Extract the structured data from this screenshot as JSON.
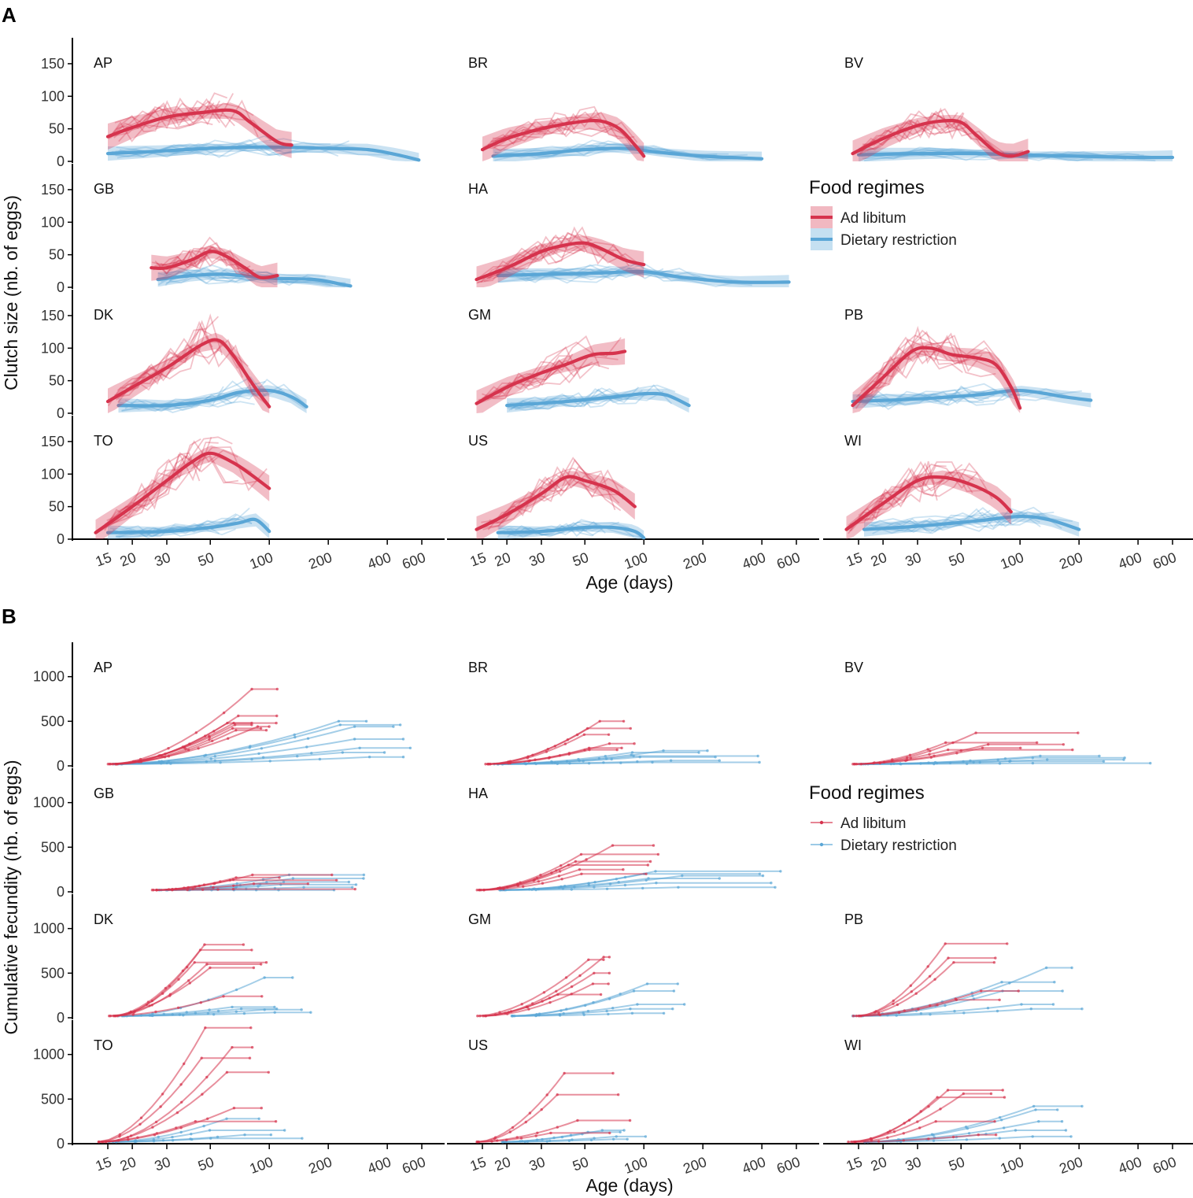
{
  "colors": {
    "ad_libitum": "#d6334d",
    "dietary_restriction": "#5aa6d6",
    "axis": "#000000"
  },
  "facets": [
    "AP",
    "BR",
    "BV",
    "GB",
    "HA",
    "DK",
    "GM",
    "PB",
    "TO",
    "US",
    "WI"
  ],
  "panel_a": {
    "letter": "A",
    "xlabel": "Age (days)",
    "ylabel": "Clutch size (nb. of eggs)",
    "legend": {
      "title": "Food regimes",
      "items": [
        "Ad libitum",
        "Dietary restriction"
      ]
    }
  },
  "panel_b": {
    "letter": "B",
    "xlabel": "Age (days)",
    "ylabel": "Cumulative fecundity (nb. of eggs)",
    "legend": {
      "title": "Food regimes",
      "items": [
        "Ad libitum",
        "Dietary restriction"
      ]
    }
  },
  "chart_data": [
    {
      "type": "line",
      "title": "A",
      "xlabel": "Age (days)",
      "ylabel": "Clutch size (nb. of eggs)",
      "x_scale": "log",
      "x_ticks": [
        15,
        20,
        30,
        50,
        100,
        200,
        400,
        600
      ],
      "y_ticks": [
        0,
        50,
        100,
        150
      ],
      "ylim": [
        0,
        185
      ],
      "legend": {
        "title": "Food regimes",
        "entries": [
          "Ad libitum",
          "Dietary restriction"
        ]
      },
      "facets": {
        "AP": {
          "ad": [
            [
              15,
              38
            ],
            [
              20,
              52
            ],
            [
              30,
              68
            ],
            [
              45,
              75
            ],
            [
              65,
              78
            ],
            [
              80,
              60
            ],
            [
              110,
              30
            ],
            [
              130,
              25
            ]
          ],
          "dr": [
            [
              15,
              12
            ],
            [
              25,
              15
            ],
            [
              50,
              20
            ],
            [
              100,
              22
            ],
            [
              200,
              20
            ],
            [
              320,
              18
            ],
            [
              450,
              10
            ],
            [
              580,
              2
            ]
          ],
          "ad_end": 130,
          "dr_end": 580
        },
        "BR": {
          "ad": [
            [
              15,
              18
            ],
            [
              20,
              35
            ],
            [
              30,
              50
            ],
            [
              45,
              60
            ],
            [
              60,
              62
            ],
            [
              75,
              50
            ],
            [
              90,
              25
            ],
            [
              100,
              8
            ]
          ],
          "dr": [
            [
              17,
              8
            ],
            [
              30,
              12
            ],
            [
              50,
              18
            ],
            [
              80,
              20
            ],
            [
              120,
              14
            ],
            [
              200,
              8
            ],
            [
              400,
              4
            ]
          ],
          "ad_end": 100,
          "dr_end": 400
        },
        "BV": {
          "ad": [
            [
              14,
              12
            ],
            [
              20,
              35
            ],
            [
              30,
              55
            ],
            [
              40,
              62
            ],
            [
              50,
              60
            ],
            [
              60,
              40
            ],
            [
              75,
              15
            ],
            [
              90,
              8
            ],
            [
              110,
              15
            ]
          ],
          "dr": [
            [
              15,
              10
            ],
            [
              30,
              12
            ],
            [
              60,
              12
            ],
            [
              100,
              10
            ],
            [
              200,
              8
            ],
            [
              400,
              6
            ],
            [
              600,
              6
            ]
          ],
          "ad_end": 110,
          "dr_end": 600
        },
        "GB": {
          "ad": [
            [
              25,
              30
            ],
            [
              30,
              30
            ],
            [
              40,
              42
            ],
            [
              50,
              55
            ],
            [
              60,
              48
            ],
            [
              75,
              30
            ],
            [
              90,
              15
            ],
            [
              110,
              18
            ]
          ],
          "dr": [
            [
              27,
              12
            ],
            [
              40,
              18
            ],
            [
              60,
              20
            ],
            [
              100,
              14
            ],
            [
              170,
              12
            ],
            [
              230,
              5
            ],
            [
              260,
              2
            ]
          ],
          "ad_end": 110,
          "dr_end": 260
        },
        "HA": {
          "ad": [
            [
              14,
              12
            ],
            [
              20,
              30
            ],
            [
              30,
              55
            ],
            [
              40,
              65
            ],
            [
              50,
              68
            ],
            [
              60,
              60
            ],
            [
              80,
              42
            ],
            [
              100,
              35
            ]
          ],
          "dr": [
            [
              18,
              18
            ],
            [
              30,
              20
            ],
            [
              60,
              22
            ],
            [
              100,
              24
            ],
            [
              160,
              15
            ],
            [
              300,
              8
            ],
            [
              550,
              8
            ]
          ],
          "ad_end": 100,
          "dr_end": 550
        },
        "DK": {
          "ad": [
            [
              15,
              18
            ],
            [
              20,
              40
            ],
            [
              30,
              70
            ],
            [
              45,
              105
            ],
            [
              55,
              112
            ],
            [
              65,
              90
            ],
            [
              80,
              50
            ],
            [
              90,
              28
            ],
            [
              100,
              10
            ]
          ],
          "dr": [
            [
              17,
              12
            ],
            [
              30,
              12
            ],
            [
              50,
              20
            ],
            [
              70,
              32
            ],
            [
              100,
              35
            ],
            [
              130,
              25
            ],
            [
              155,
              10
            ]
          ],
          "ad_end": 100,
          "dr_end": 155
        },
        "GM": {
          "ad": [
            [
              14,
              15
            ],
            [
              20,
              40
            ],
            [
              30,
              62
            ],
            [
              40,
              75
            ],
            [
              55,
              90
            ],
            [
              70,
              92
            ],
            [
              80,
              95
            ]
          ],
          "dr": [
            [
              20,
              12
            ],
            [
              40,
              18
            ],
            [
              70,
              25
            ],
            [
              100,
              30
            ],
            [
              130,
              28
            ],
            [
              170,
              12
            ]
          ],
          "ad_end": 80,
          "dr_end": 170
        },
        "PB": {
          "ad": [
            [
              14,
              12
            ],
            [
              20,
              55
            ],
            [
              28,
              95
            ],
            [
              35,
              100
            ],
            [
              45,
              90
            ],
            [
              60,
              85
            ],
            [
              75,
              75
            ],
            [
              90,
              40
            ],
            [
              100,
              8
            ]
          ],
          "dr": [
            [
              14,
              18
            ],
            [
              30,
              22
            ],
            [
              60,
              28
            ],
            [
              100,
              35
            ],
            [
              170,
              25
            ],
            [
              230,
              20
            ]
          ],
          "ad_end": 100,
          "dr_end": 230
        },
        "TO": {
          "ad": [
            [
              13,
              10
            ],
            [
              20,
              50
            ],
            [
              30,
              90
            ],
            [
              40,
              118
            ],
            [
              50,
              132
            ],
            [
              65,
              118
            ],
            [
              80,
              100
            ],
            [
              100,
              78
            ]
          ],
          "dr": [
            [
              15,
              10
            ],
            [
              30,
              12
            ],
            [
              50,
              18
            ],
            [
              70,
              25
            ],
            [
              85,
              30
            ],
            [
              100,
              12
            ]
          ],
          "ad_end": 100,
          "dr_end": 100
        },
        "US": {
          "ad": [
            [
              14,
              15
            ],
            [
              20,
              38
            ],
            [
              30,
              70
            ],
            [
              40,
              95
            ],
            [
              50,
              90
            ],
            [
              70,
              75
            ],
            [
              90,
              50
            ]
          ],
          "dr": [
            [
              18,
              10
            ],
            [
              30,
              12
            ],
            [
              50,
              18
            ],
            [
              70,
              18
            ],
            [
              90,
              12
            ],
            [
              100,
              2
            ]
          ],
          "ad_end": 90,
          "dr_end": 100
        },
        "WI": {
          "ad": [
            [
              13,
              15
            ],
            [
              20,
              55
            ],
            [
              30,
              90
            ],
            [
              40,
              95
            ],
            [
              55,
              85
            ],
            [
              75,
              65
            ],
            [
              90,
              42
            ]
          ],
          "dr": [
            [
              16,
              15
            ],
            [
              30,
              20
            ],
            [
              60,
              28
            ],
            [
              100,
              35
            ],
            [
              140,
              30
            ],
            [
              200,
              15
            ]
          ],
          "ad_end": 90,
          "dr_end": 200
        }
      }
    },
    {
      "type": "line",
      "title": "B",
      "xlabel": "Age (days)",
      "ylabel": "Cumulative fecundity (nb. of eggs)",
      "x_scale": "log",
      "x_ticks": [
        15,
        20,
        30,
        50,
        100,
        200,
        400,
        600
      ],
      "y_ticks": [
        0,
        500,
        1000
      ],
      "ylim": [
        0,
        1350
      ],
      "legend": {
        "title": "Food regimes",
        "entries": [
          "Ad libitum",
          "Dietary restriction"
        ]
      },
      "facets": {
        "AP": {
          "ad_start": 15,
          "ad_tip": 65,
          "ad_end": 110,
          "ad_finals": [
            860,
            560,
            480,
            440,
            400,
            460,
            480,
            420
          ],
          "dr_start": 16,
          "dr_tip": 250,
          "dr_end": 560,
          "dr_finals": [
            500,
            460,
            440,
            300,
            200,
            150,
            100
          ]
        },
        "BR": {
          "ad_start": 15,
          "ad_tip": 55,
          "ad_end": 90,
          "ad_finals": [
            500,
            420,
            350,
            250,
            200,
            180
          ],
          "dr_start": 17,
          "dr_tip": 100,
          "dr_end": 500,
          "dr_finals": [
            170,
            150,
            110,
            100,
            60,
            40
          ]
        },
        "BV": {
          "ad_start": 14,
          "ad_tip": 50,
          "ad_end": 200,
          "ad_finals": [
            370,
            260,
            240,
            200,
            180
          ],
          "dr_start": 15,
          "dr_tip": 110,
          "dr_end": 620,
          "dr_finals": [
            110,
            90,
            70,
            50,
            30
          ]
        },
        "GB": {
          "ad_start": 25,
          "ad_tip": 60,
          "ad_end": 280,
          "ad_finals": [
            190,
            160,
            130,
            90,
            30
          ],
          "dr_start": 27,
          "dr_tip": 130,
          "dr_end": 440,
          "dr_finals": [
            190,
            150,
            110,
            80,
            50,
            20
          ]
        },
        "HA": {
          "ad_start": 14,
          "ad_tip": 50,
          "ad_end": 120,
          "ad_finals": [
            520,
            420,
            340,
            300,
            250,
            200
          ],
          "dr_start": 18,
          "dr_tip": 120,
          "dr_end": 500,
          "dr_finals": [
            230,
            200,
            180,
            150,
            100,
            50
          ]
        },
        "DK": {
          "ad_start": 15,
          "ad_tip": 50,
          "ad_end": 100,
          "ad_finals": [
            820,
            760,
            620,
            600,
            560,
            240
          ],
          "dr_start": 17,
          "dr_tip": 80,
          "dr_end": 170,
          "dr_finals": [
            450,
            120,
            100,
            90,
            60
          ]
        },
        "GM": {
          "ad_start": 14,
          "ad_tip": 45,
          "ad_end": 70,
          "ad_finals": [
            680,
            650,
            500,
            380,
            260
          ],
          "dr_start": 20,
          "dr_tip": 90,
          "dr_end": 200,
          "dr_finals": [
            380,
            300,
            150,
            100,
            50
          ]
        },
        "PB": {
          "ad_start": 14,
          "ad_tip": 50,
          "ad_end": 100,
          "ad_finals": [
            830,
            670,
            620,
            300,
            200
          ],
          "dr_start": 14,
          "dr_tip": 100,
          "dr_end": 230,
          "dr_finals": [
            560,
            400,
            300,
            150,
            100
          ]
        },
        "TO": {
          "ad_start": 13,
          "ad_tip": 50,
          "ad_end": 110,
          "ad_finals": [
            1300,
            1080,
            960,
            800,
            400,
            250
          ],
          "dr_start": 15,
          "dr_tip": 60,
          "dr_end": 160,
          "dr_finals": [
            280,
            150,
            100,
            60
          ]
        },
        "US": {
          "ad_start": 14,
          "ad_tip": 40,
          "ad_end": 90,
          "ad_finals": [
            790,
            550,
            260,
            120
          ],
          "dr_start": 18,
          "dr_tip": 60,
          "dr_end": 110,
          "dr_finals": [
            150,
            130,
            80,
            50
          ]
        },
        "WI": {
          "ad_start": 13,
          "ad_tip": 45,
          "ad_end": 100,
          "ad_finals": [
            600,
            560,
            520,
            250,
            100
          ],
          "dr_start": 16,
          "dr_tip": 100,
          "dr_end": 220,
          "dr_finals": [
            420,
            380,
            250,
            150,
            80
          ]
        }
      }
    }
  ]
}
